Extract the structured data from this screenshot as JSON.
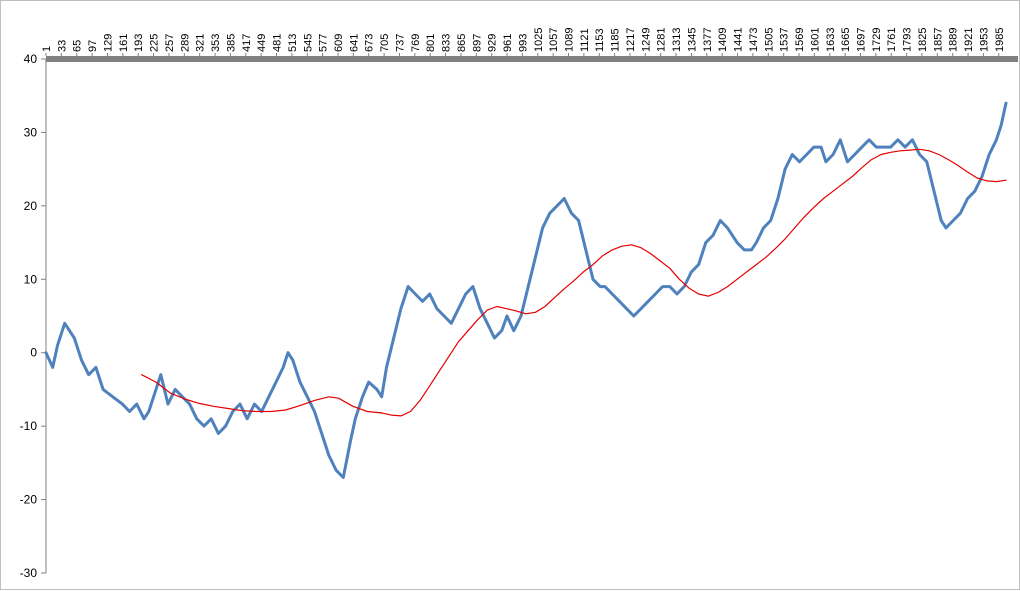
{
  "chart_data": {
    "type": "line",
    "title": "",
    "xlabel": "",
    "ylabel": "",
    "xlim": [
      1,
      2000
    ],
    "ylim": [
      -30,
      40
    ],
    "y_ticks": [
      -30,
      -20,
      -10,
      0,
      10,
      20,
      30,
      40
    ],
    "x_tick_labels": [
      "1",
      "33",
      "65",
      "97",
      "129",
      "161",
      "193",
      "225",
      "257",
      "289",
      "321",
      "353",
      "385",
      "417",
      "449",
      "481",
      "513",
      "545",
      "577",
      "609",
      "641",
      "673",
      "705",
      "737",
      "769",
      "801",
      "833",
      "865",
      "897",
      "929",
      "961",
      "993",
      "1025",
      "1057",
      "1089",
      "1121",
      "1153",
      "1185",
      "1217",
      "1249",
      "1281",
      "1313",
      "1345",
      "1377",
      "1409",
      "1441",
      "1473",
      "1505",
      "1537",
      "1569",
      "1601",
      "1633",
      "1665",
      "1697",
      "1729",
      "1761",
      "1793",
      "1825",
      "1857",
      "1889",
      "1921",
      "1953",
      "1985"
    ],
    "grid": false,
    "legend": "none",
    "series": [
      {
        "color": "#4f81bd",
        "x": [
          1,
          15,
          25,
          40,
          60,
          75,
          90,
          105,
          120,
          140,
          160,
          175,
          190,
          205,
          215,
          225,
          240,
          255,
          270,
          285,
          300,
          315,
          330,
          345,
          360,
          375,
          390,
          405,
          420,
          435,
          450,
          465,
          480,
          495,
          505,
          515,
          530,
          545,
          560,
          575,
          590,
          605,
          620,
          635,
          645,
          660,
          673,
          690,
          700,
          710,
          725,
          740,
          755,
          770,
          785,
          800,
          815,
          830,
          845,
          860,
          875,
          890,
          905,
          920,
          935,
          950,
          961,
          975,
          990,
          1005,
          1020,
          1035,
          1050,
          1065,
          1080,
          1095,
          1110,
          1125,
          1140,
          1155,
          1165,
          1180,
          1195,
          1210,
          1225,
          1240,
          1255,
          1270,
          1285,
          1300,
          1315,
          1330,
          1345,
          1360,
          1375,
          1390,
          1405,
          1420,
          1440,
          1455,
          1470,
          1480,
          1495,
          1510,
          1525,
          1540,
          1555,
          1570,
          1585,
          1600,
          1615,
          1625,
          1640,
          1655,
          1670,
          1685,
          1700,
          1715,
          1730,
          1745,
          1760,
          1775,
          1790,
          1805,
          1820,
          1835,
          1850,
          1865,
          1875,
          1890,
          1905,
          1920,
          1935,
          1950,
          1965,
          1980,
          1990,
          2000
        ],
        "values": [
          0,
          -2,
          1,
          4,
          2,
          -1,
          -3,
          -2,
          -5,
          -6,
          -7,
          -8,
          -7,
          -9,
          -8,
          -6,
          -3,
          -7,
          -5,
          -6,
          -7,
          -9,
          -10,
          -9,
          -11,
          -10,
          -8,
          -7,
          -9,
          -7,
          -8,
          -6,
          -4,
          -2,
          0,
          -1,
          -4,
          -6,
          -8,
          -11,
          -14,
          -16,
          -17,
          -12,
          -9,
          -6,
          -4,
          -5,
          -6,
          -2,
          2,
          6,
          9,
          8,
          7,
          8,
          6,
          5,
          4,
          6,
          8,
          9,
          6,
          4,
          2,
          3,
          5,
          3,
          5,
          9,
          13,
          17,
          19,
          20,
          21,
          19,
          18,
          14,
          10,
          9,
          9,
          8,
          7,
          6,
          5,
          6,
          7,
          8,
          9,
          9,
          8,
          9,
          11,
          12,
          15,
          16,
          18,
          17,
          15,
          14,
          14,
          15,
          17,
          18,
          21,
          25,
          27,
          26,
          27,
          28,
          28,
          26,
          27,
          29,
          26,
          27,
          28,
          29,
          28,
          28,
          28,
          29,
          28,
          29,
          27,
          26,
          22,
          18,
          17,
          18,
          19,
          21,
          22,
          24,
          27,
          29,
          31,
          34
        ]
      },
      {
        "color": "#e60000",
        "x": [
          200,
          230,
          260,
          290,
          320,
          350,
          380,
          410,
          440,
          470,
          500,
          530,
          560,
          590,
          610,
          640,
          670,
          700,
          720,
          740,
          760,
          780,
          800,
          820,
          840,
          860,
          880,
          900,
          920,
          940,
          960,
          980,
          1000,
          1020,
          1040,
          1060,
          1080,
          1100,
          1120,
          1140,
          1160,
          1180,
          1200,
          1220,
          1240,
          1260,
          1280,
          1300,
          1320,
          1340,
          1360,
          1380,
          1400,
          1420,
          1440,
          1460,
          1480,
          1500,
          1520,
          1540,
          1560,
          1580,
          1600,
          1620,
          1640,
          1660,
          1680,
          1700,
          1720,
          1740,
          1760,
          1780,
          1800,
          1820,
          1840,
          1860,
          1880,
          1900,
          1920,
          1940,
          1960,
          1980,
          2000
        ],
        "values": [
          -3,
          -4,
          -5.5,
          -6.3,
          -6.9,
          -7.3,
          -7.6,
          -7.9,
          -8.0,
          -8.0,
          -7.8,
          -7.2,
          -6.5,
          -6.0,
          -6.2,
          -7.3,
          -8.0,
          -8.2,
          -8.5,
          -8.6,
          -8,
          -6.5,
          -4.5,
          -2.5,
          -0.5,
          1.5,
          3,
          4.5,
          5.8,
          6.3,
          6,
          5.7,
          5.3,
          5.5,
          6.3,
          7.5,
          8.7,
          9.8,
          11,
          12,
          13.2,
          14,
          14.5,
          14.7,
          14.3,
          13.5,
          12.5,
          11.5,
          10,
          8.8,
          8,
          7.7,
          8.2,
          9,
          10,
          11,
          12,
          13,
          14.2,
          15.5,
          17,
          18.5,
          19.8,
          21,
          22,
          23,
          24,
          25.2,
          26.3,
          27,
          27.3,
          27.5,
          27.6,
          27.7,
          27.5,
          27,
          26.3,
          25.5,
          24.6,
          23.8,
          23.4,
          23.3,
          23.5
        ]
      }
    ]
  }
}
